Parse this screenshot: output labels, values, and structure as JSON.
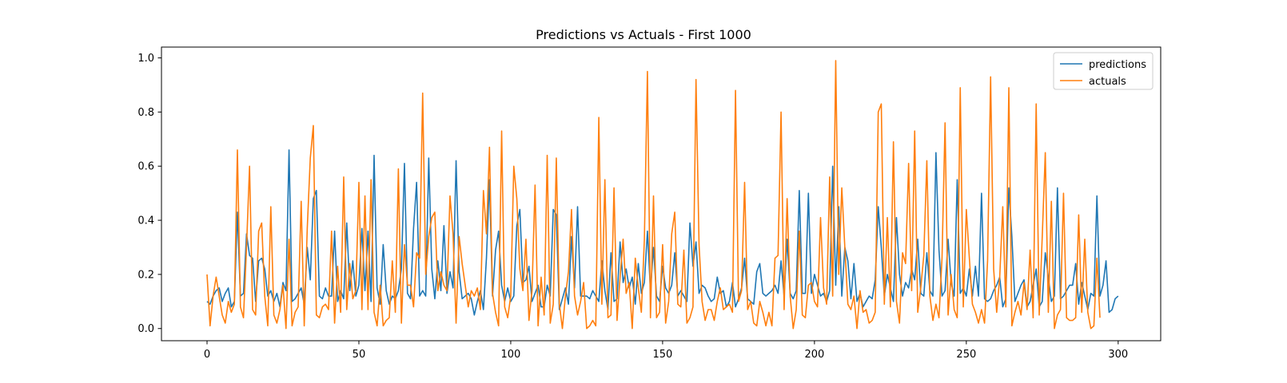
{
  "chart_data": {
    "type": "line",
    "title": "Predictions vs Actuals - First 1000",
    "xlabel": "",
    "ylabel": "",
    "xlim": [
      -15,
      314
    ],
    "ylim": [
      -0.045,
      1.04
    ],
    "xticks": [
      0,
      50,
      100,
      150,
      200,
      250,
      300
    ],
    "xtick_labels": [
      "0",
      "50",
      "100",
      "150",
      "200",
      "250",
      "300"
    ],
    "yticks": [
      0.0,
      0.2,
      0.4,
      0.6,
      0.8,
      1.0
    ],
    "ytick_labels": [
      "0.0",
      "0.2",
      "0.4",
      "0.6",
      "0.8",
      "1.0"
    ],
    "grid": false,
    "legend_position": "top-right",
    "x_start": 0,
    "series": [
      {
        "name": "predictions",
        "color": "#1f77b4",
        "values": [
          0.1,
          0.09,
          0.12,
          0.14,
          0.15,
          0.1,
          0.13,
          0.15,
          0.08,
          0.1,
          0.43,
          0.12,
          0.13,
          0.35,
          0.27,
          0.26,
          0.1,
          0.25,
          0.26,
          0.22,
          0.12,
          0.14,
          0.1,
          0.13,
          0.08,
          0.17,
          0.14,
          0.66,
          0.1,
          0.11,
          0.13,
          0.15,
          0.09,
          0.3,
          0.18,
          0.48,
          0.51,
          0.12,
          0.11,
          0.15,
          0.12,
          0.12,
          0.36,
          0.1,
          0.14,
          0.11,
          0.39,
          0.14,
          0.25,
          0.12,
          0.16,
          0.37,
          0.14,
          0.36,
          0.1,
          0.64,
          0.15,
          0.09,
          0.31,
          0.14,
          0.09,
          0.12,
          0.11,
          0.14,
          0.22,
          0.61,
          0.13,
          0.11,
          0.37,
          0.54,
          0.12,
          0.14,
          0.12,
          0.63,
          0.22,
          0.11,
          0.25,
          0.14,
          0.38,
          0.13,
          0.21,
          0.15,
          0.62,
          0.21,
          0.11,
          0.12,
          0.13,
          0.11,
          0.05,
          0.1,
          0.14,
          0.07,
          0.26,
          0.55,
          0.12,
          0.29,
          0.36,
          0.16,
          0.1,
          0.15,
          0.1,
          0.12,
          0.38,
          0.44,
          0.17,
          0.18,
          0.23,
          0.1,
          0.13,
          0.16,
          0.08,
          0.08,
          0.16,
          0.12,
          0.44,
          0.42,
          0.07,
          0.11,
          0.15,
          0.09,
          0.34,
          0.15,
          0.45,
          0.12,
          0.12,
          0.12,
          0.11,
          0.14,
          0.12,
          0.1,
          0.25,
          0.14,
          0.07,
          0.28,
          0.1,
          0.11,
          0.32,
          0.17,
          0.22,
          0.15,
          0.19,
          0.09,
          0.24,
          0.13,
          0.17,
          0.36,
          0.14,
          0.3,
          0.12,
          0.1,
          0.23,
          0.15,
          0.13,
          0.16,
          0.28,
          0.12,
          0.14,
          0.12,
          0.1,
          0.39,
          0.23,
          0.32,
          0.13,
          0.16,
          0.15,
          0.12,
          0.1,
          0.11,
          0.19,
          0.13,
          0.14,
          0.08,
          0.1,
          0.17,
          0.08,
          0.11,
          0.15,
          0.26,
          0.11,
          0.1,
          0.09,
          0.21,
          0.24,
          0.13,
          0.12,
          0.13,
          0.14,
          0.16,
          0.13,
          0.25,
          0.12,
          0.33,
          0.13,
          0.11,
          0.14,
          0.51,
          0.13,
          0.13,
          0.5,
          0.13,
          0.2,
          0.16,
          0.12,
          0.13,
          0.1,
          0.14,
          0.6,
          0.16,
          0.45,
          0.12,
          0.3,
          0.25,
          0.11,
          0.24,
          0.1,
          0.13,
          0.08,
          0.1,
          0.12,
          0.11,
          0.18,
          0.45,
          0.3,
          0.12,
          0.2,
          0.15,
          0.1,
          0.41,
          0.2,
          0.12,
          0.17,
          0.15,
          0.22,
          0.18,
          0.33,
          0.13,
          0.12,
          0.28,
          0.14,
          0.12,
          0.65,
          0.29,
          0.12,
          0.14,
          0.33,
          0.17,
          0.12,
          0.55,
          0.13,
          0.15,
          0.12,
          0.22,
          0.12,
          0.23,
          0.12,
          0.5,
          0.11,
          0.1,
          0.11,
          0.14,
          0.16,
          0.19,
          0.08,
          0.11,
          0.52,
          0.34,
          0.1,
          0.13,
          0.16,
          0.18,
          0.08,
          0.1,
          0.16,
          0.22,
          0.08,
          0.1,
          0.28,
          0.19,
          0.1,
          0.12,
          0.52,
          0.11,
          0.12,
          0.14,
          0.16,
          0.16,
          0.24,
          0.09,
          0.17,
          0.12,
          0.07,
          0.13,
          0.12,
          0.49,
          0.12,
          0.16,
          0.25,
          0.06,
          0.07,
          0.11,
          0.12
        ]
      },
      {
        "name": "actuals",
        "color": "#ff7f0e",
        "values": [
          0.2,
          0.01,
          0.12,
          0.19,
          0.12,
          0.05,
          0.02,
          0.1,
          0.06,
          0.09,
          0.66,
          0.08,
          0.04,
          0.3,
          0.6,
          0.07,
          0.05,
          0.36,
          0.39,
          0.12,
          0.01,
          0.45,
          0.05,
          0.02,
          0.07,
          0.16,
          0.0,
          0.33,
          0.01,
          0.06,
          0.08,
          0.47,
          0.01,
          0.37,
          0.63,
          0.75,
          0.05,
          0.04,
          0.08,
          0.09,
          0.07,
          0.36,
          0.02,
          0.23,
          0.06,
          0.56,
          0.07,
          0.24,
          0.11,
          0.14,
          0.54,
          0.07,
          0.49,
          0.07,
          0.55,
          0.06,
          0.01,
          0.16,
          0.01,
          0.03,
          0.04,
          0.25,
          0.06,
          0.59,
          0.02,
          0.31,
          0.16,
          0.16,
          0.08,
          0.28,
          0.26,
          0.87,
          0.2,
          0.34,
          0.41,
          0.43,
          0.14,
          0.21,
          0.16,
          0.14,
          0.49,
          0.35,
          0.02,
          0.34,
          0.24,
          0.16,
          0.08,
          0.14,
          0.12,
          0.15,
          0.07,
          0.51,
          0.35,
          0.67,
          0.13,
          0.06,
          0.01,
          0.73,
          0.08,
          0.04,
          0.12,
          0.6,
          0.48,
          0.22,
          0.14,
          0.33,
          0.03,
          0.14,
          0.53,
          0.01,
          0.19,
          0.05,
          0.64,
          0.02,
          0.09,
          0.63,
          0.09,
          0.0,
          0.12,
          0.21,
          0.44,
          0.12,
          0.05,
          0.1,
          0.17,
          0.0,
          0.01,
          0.03,
          0.01,
          0.78,
          0.09,
          0.55,
          0.04,
          0.05,
          0.52,
          0.03,
          0.19,
          0.33,
          0.13,
          0.17,
          0.0,
          0.26,
          0.15,
          0.06,
          0.33,
          0.95,
          0.04,
          0.49,
          0.04,
          0.06,
          0.31,
          0.02,
          0.1,
          0.35,
          0.43,
          0.09,
          0.08,
          0.29,
          0.02,
          0.04,
          0.08,
          0.92,
          0.31,
          0.1,
          0.03,
          0.07,
          0.07,
          0.03,
          0.1,
          0.15,
          0.07,
          0.08,
          0.09,
          0.06,
          0.88,
          0.1,
          0.14,
          0.54,
          0.07,
          0.1,
          0.02,
          0.01,
          0.1,
          0.06,
          0.01,
          0.06,
          0.01,
          0.26,
          0.27,
          0.8,
          0.07,
          0.48,
          0.12,
          0.0,
          0.07,
          0.36,
          0.05,
          0.04,
          0.16,
          0.17,
          0.1,
          0.08,
          0.41,
          0.15,
          0.09,
          0.56,
          0.12,
          0.99,
          0.2,
          0.52,
          0.3,
          0.09,
          0.07,
          0.12,
          0.0,
          0.14,
          0.06,
          0.07,
          0.02,
          0.03,
          0.06,
          0.8,
          0.83,
          0.09,
          0.41,
          0.08,
          0.69,
          0.1,
          0.02,
          0.28,
          0.24,
          0.61,
          0.14,
          0.73,
          0.06,
          0.15,
          0.27,
          0.62,
          0.12,
          0.03,
          0.09,
          0.04,
          0.26,
          0.76,
          0.05,
          0.2,
          0.07,
          0.04,
          0.89,
          0.08,
          0.44,
          0.26,
          0.09,
          0.06,
          0.02,
          0.07,
          0.02,
          0.25,
          0.93,
          0.22,
          0.06,
          0.19,
          0.45,
          0.08,
          0.89,
          0.01,
          0.06,
          0.1,
          0.05,
          0.17,
          0.07,
          0.29,
          0.04,
          0.83,
          0.05,
          0.34,
          0.65,
          0.06,
          0.47,
          0.0,
          0.05,
          0.07,
          0.5,
          0.04,
          0.03,
          0.03,
          0.04,
          0.42,
          0.06,
          0.33,
          0.06,
          0.0,
          0.01,
          0.26,
          0.04
        ]
      }
    ]
  }
}
